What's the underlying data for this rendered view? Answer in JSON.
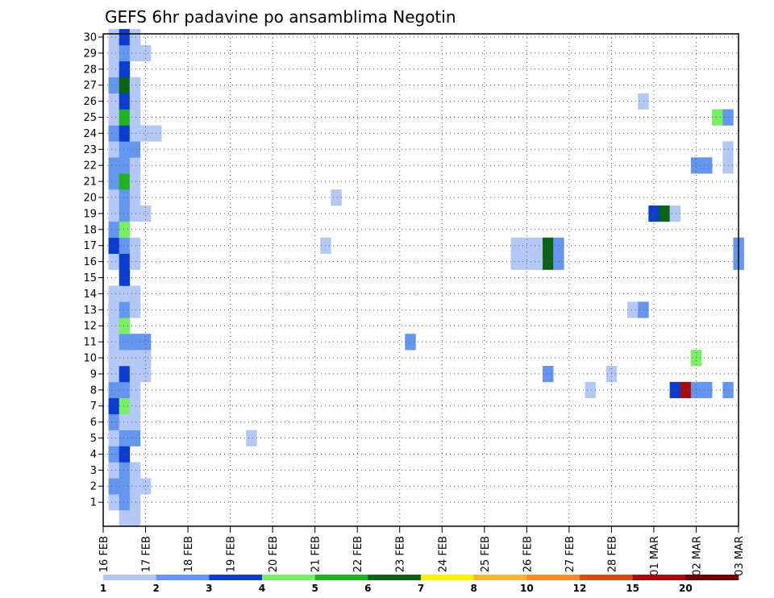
{
  "chart_data": {
    "type": "heatmap",
    "title": "GEFS 6hr padavine po ansamblima Negotin",
    "x_tick_labels": [
      "16 FEB",
      "17 FEB",
      "18 FEB",
      "19 FEB",
      "20 FEB",
      "21 FEB",
      "22 FEB",
      "23 FEB",
      "24 FEB",
      "25 FEB",
      "26 FEB",
      "27 FEB",
      "28 FEB",
      "01 MAR",
      "02 MAR",
      "03 MAR"
    ],
    "y_tick_labels": [
      "1",
      "2",
      "3",
      "4",
      "5",
      "6",
      "7",
      "8",
      "9",
      "10",
      "11",
      "12",
      "13",
      "14",
      "15",
      "16",
      "17",
      "18",
      "19",
      "20",
      "21",
      "22",
      "23",
      "24",
      "25",
      "26",
      "27",
      "28",
      "29",
      "30"
    ],
    "y_range": [
      0,
      30
    ],
    "x_step_unit": "6hr",
    "x_range_steps": [
      0,
      60
    ],
    "grid": "dotted",
    "legend_position": "bottom",
    "scale_labels": [
      "1",
      "2",
      "3",
      "4",
      "5",
      "6",
      "7",
      "8",
      "10",
      "12",
      "15",
      "20"
    ],
    "scale_colors": [
      "#b4c8f5",
      "#6496f0",
      "#0a3cd2",
      "#78f064",
      "#1eb41e",
      "#0a6414",
      "#faf000",
      "#fab432",
      "#fa8c28",
      "#e14614",
      "#aa0a0a",
      "#6e0000"
    ],
    "grid_color": "#555555",
    "cells": [
      [
        1,
        1,
        1
      ],
      [
        1,
        2,
        2
      ],
      [
        1,
        3,
        1
      ],
      [
        2,
        1,
        2
      ],
      [
        2,
        2,
        2
      ],
      [
        2,
        3,
        1
      ],
      [
        2,
        4,
        1
      ],
      [
        3,
        1,
        1
      ],
      [
        3,
        2,
        2
      ],
      [
        3,
        3,
        1
      ],
      [
        4,
        1,
        2
      ],
      [
        4,
        2,
        3
      ],
      [
        5,
        1,
        1
      ],
      [
        5,
        2,
        2
      ],
      [
        5,
        3,
        2
      ],
      [
        5,
        14,
        1
      ],
      [
        6,
        1,
        2
      ],
      [
        6,
        2,
        1
      ],
      [
        6,
        3,
        1
      ],
      [
        7,
        1,
        3
      ],
      [
        7,
        2,
        4
      ],
      [
        7,
        3,
        1
      ],
      [
        8,
        1,
        2
      ],
      [
        8,
        2,
        2
      ],
      [
        8,
        3,
        1
      ],
      [
        8,
        46,
        1
      ],
      [
        8,
        54,
        3
      ],
      [
        8,
        55,
        11
      ],
      [
        8,
        56,
        2
      ],
      [
        8,
        57,
        2
      ],
      [
        8,
        59,
        2
      ],
      [
        9,
        1,
        1
      ],
      [
        9,
        2,
        3
      ],
      [
        9,
        3,
        1
      ],
      [
        9,
        4,
        1
      ],
      [
        9,
        42,
        2
      ],
      [
        9,
        48,
        1
      ],
      [
        10,
        1,
        1
      ],
      [
        10,
        2,
        1
      ],
      [
        10,
        3,
        1
      ],
      [
        10,
        4,
        1
      ],
      [
        10,
        56,
        4
      ],
      [
        11,
        1,
        1
      ],
      [
        11,
        2,
        2
      ],
      [
        11,
        3,
        2
      ],
      [
        11,
        4,
        2
      ],
      [
        11,
        29,
        2
      ],
      [
        12,
        1,
        1
      ],
      [
        12,
        2,
        4
      ],
      [
        13,
        1,
        1
      ],
      [
        13,
        2,
        2
      ],
      [
        13,
        3,
        1
      ],
      [
        13,
        50,
        1
      ],
      [
        13,
        51,
        2
      ],
      [
        14,
        1,
        1
      ],
      [
        14,
        2,
        1
      ],
      [
        14,
        3,
        1
      ],
      [
        15,
        2,
        3
      ],
      [
        16,
        1,
        1
      ],
      [
        16,
        2,
        3
      ],
      [
        16,
        3,
        1
      ],
      [
        16,
        39,
        1
      ],
      [
        16,
        40,
        1
      ],
      [
        16,
        41,
        1
      ],
      [
        16,
        42,
        6
      ],
      [
        16,
        43,
        2
      ],
      [
        16,
        60,
        2
      ],
      [
        17,
        1,
        3
      ],
      [
        17,
        2,
        2
      ],
      [
        17,
        3,
        1
      ],
      [
        17,
        21,
        1
      ],
      [
        17,
        39,
        1
      ],
      [
        17,
        40,
        1
      ],
      [
        17,
        41,
        1
      ],
      [
        17,
        42,
        6
      ],
      [
        17,
        43,
        2
      ],
      [
        17,
        60,
        2
      ],
      [
        18,
        1,
        2
      ],
      [
        18,
        2,
        4
      ],
      [
        19,
        1,
        1
      ],
      [
        19,
        2,
        2
      ],
      [
        19,
        3,
        1
      ],
      [
        19,
        4,
        1
      ],
      [
        19,
        52,
        3
      ],
      [
        19,
        53,
        6
      ],
      [
        19,
        54,
        1
      ],
      [
        20,
        1,
        1
      ],
      [
        20,
        2,
        2
      ],
      [
        20,
        3,
        1
      ],
      [
        20,
        22,
        1
      ],
      [
        21,
        1,
        2
      ],
      [
        21,
        2,
        5
      ],
      [
        21,
        3,
        1
      ],
      [
        22,
        1,
        2
      ],
      [
        22,
        2,
        2
      ],
      [
        22,
        3,
        1
      ],
      [
        22,
        56,
        2
      ],
      [
        22,
        57,
        2
      ],
      [
        22,
        59,
        1
      ],
      [
        23,
        1,
        1
      ],
      [
        23,
        2,
        2
      ],
      [
        23,
        3,
        2
      ],
      [
        23,
        59,
        1
      ],
      [
        24,
        1,
        2
      ],
      [
        24,
        2,
        3
      ],
      [
        24,
        3,
        1
      ],
      [
        24,
        4,
        1
      ],
      [
        24,
        5,
        1
      ],
      [
        25,
        1,
        1
      ],
      [
        25,
        2,
        5
      ],
      [
        25,
        3,
        1
      ],
      [
        25,
        58,
        4
      ],
      [
        25,
        59,
        2
      ],
      [
        26,
        1,
        1
      ],
      [
        26,
        2,
        3
      ],
      [
        26,
        3,
        1
      ],
      [
        26,
        51,
        1
      ],
      [
        27,
        1,
        2
      ],
      [
        27,
        2,
        6
      ],
      [
        27,
        3,
        1
      ],
      [
        28,
        1,
        1
      ],
      [
        28,
        2,
        3
      ],
      [
        29,
        1,
        1
      ],
      [
        29,
        2,
        2
      ],
      [
        29,
        3,
        1
      ],
      [
        29,
        4,
        1
      ],
      [
        30,
        1,
        1
      ],
      [
        30,
        2,
        3
      ],
      [
        30,
        3,
        1
      ],
      [
        0,
        2,
        1
      ],
      [
        0,
        3,
        1
      ]
    ]
  }
}
